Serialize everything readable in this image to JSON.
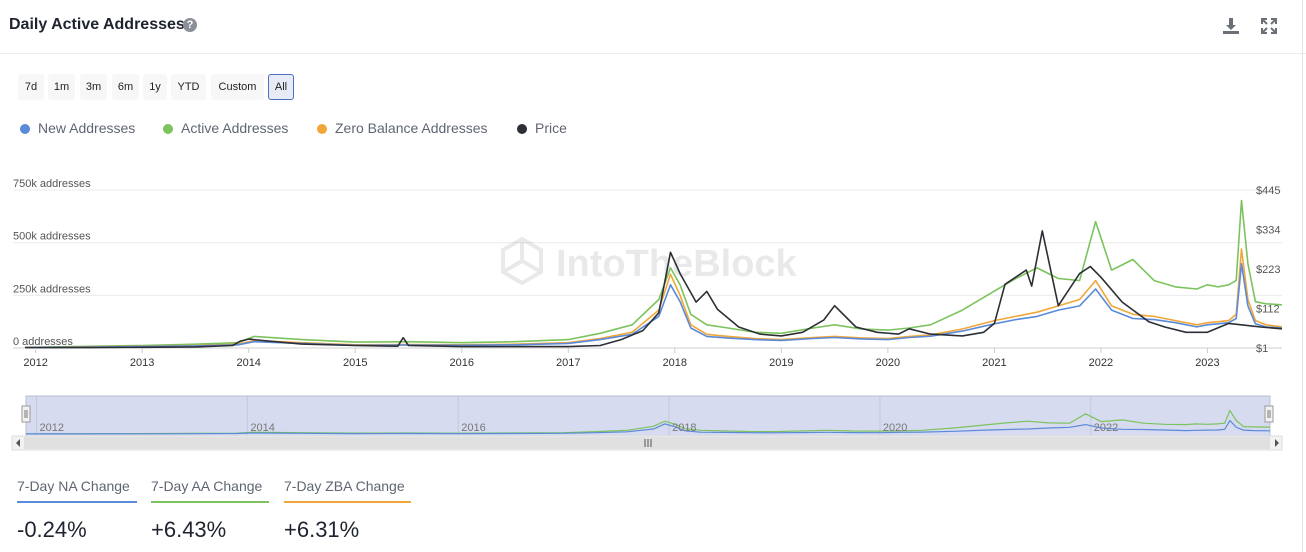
{
  "header": {
    "title": "Daily Active Addresses",
    "help_glyph": "?"
  },
  "ranges": [
    "7d",
    "1m",
    "3m",
    "6m",
    "1y",
    "YTD",
    "Custom",
    "All"
  ],
  "active_range": "All",
  "legend": [
    {
      "name": "New Addresses",
      "color": "#5b8ad8"
    },
    {
      "name": "Active Addresses",
      "color": "#7cc35e"
    },
    {
      "name": "Zero Balance Addresses",
      "color": "#f0a73a"
    },
    {
      "name": "Price",
      "color": "#2d2f36"
    }
  ],
  "watermark": "IntoTheBlock",
  "stats": [
    {
      "label": "7-Day NA Change",
      "value": "-0.24%",
      "color": "#5b8ad8"
    },
    {
      "label": "7-Day AA Change",
      "value": "+6.43%",
      "color": "#7cc35e"
    },
    {
      "label": "7-Day ZBA Change",
      "value": "+6.31%",
      "color": "#f0a73a"
    }
  ],
  "chart_data": {
    "type": "line",
    "title": "Daily Active Addresses",
    "x_ticks": [
      "2012",
      "2013",
      "2014",
      "2015",
      "2016",
      "2017",
      "2018",
      "2019",
      "2020",
      "2021",
      "2022",
      "2023"
    ],
    "y_left_ticks": [
      "750k addresses",
      "500k addresses",
      "250k addresses",
      "0 addresses"
    ],
    "y_left_values": [
      750000,
      500000,
      250000,
      0
    ],
    "y_right_ticks": [
      "$445",
      "$334",
      "$223",
      "$112",
      "$1"
    ],
    "y_right_values": [
      445,
      334,
      223,
      112,
      1
    ],
    "ylim_left": [
      0,
      750000
    ],
    "ylim_right": [
      1,
      445
    ],
    "xlim": [
      2011.9,
      2023.7
    ],
    "navigator_ticks": [
      "2012",
      "2014",
      "2016",
      "2018",
      "2020",
      "2022"
    ],
    "grid": true,
    "series": [
      {
        "name": "Active Addresses",
        "axis": "left",
        "color": "#7cc35e",
        "x": [
          2011.9,
          2012.5,
          2013,
          2013.5,
          2013.9,
          2014.05,
          2014.5,
          2015,
          2015.5,
          2016,
          2016.5,
          2017,
          2017.3,
          2017.6,
          2017.85,
          2017.96,
          2018.05,
          2018.15,
          2018.3,
          2018.5,
          2018.75,
          2019,
          2019.3,
          2019.5,
          2019.75,
          2020,
          2020.2,
          2020.4,
          2020.7,
          2021,
          2021.2,
          2021.4,
          2021.6,
          2021.8,
          2021.95,
          2022.1,
          2022.3,
          2022.5,
          2022.7,
          2022.9,
          2023.0,
          2023.1,
          2023.2,
          2023.27,
          2023.32,
          2023.38,
          2023.45,
          2023.55,
          2023.7
        ],
        "y": [
          3000,
          8000,
          12000,
          18000,
          25000,
          55000,
          40000,
          28000,
          30000,
          25000,
          30000,
          40000,
          70000,
          110000,
          230000,
          380000,
          300000,
          160000,
          110000,
          95000,
          75000,
          70000,
          95000,
          110000,
          90000,
          85000,
          95000,
          110000,
          180000,
          270000,
          330000,
          380000,
          330000,
          320000,
          600000,
          370000,
          420000,
          320000,
          290000,
          280000,
          300000,
          290000,
          300000,
          320000,
          700000,
          400000,
          220000,
          210000,
          205000
        ]
      },
      {
        "name": "Zero Balance Addresses",
        "axis": "left",
        "color": "#f0a73a",
        "x": [
          2011.9,
          2012.5,
          2013,
          2013.5,
          2013.9,
          2014.05,
          2014.5,
          2015,
          2015.5,
          2016,
          2016.5,
          2017,
          2017.3,
          2017.6,
          2017.85,
          2017.96,
          2018.05,
          2018.15,
          2018.3,
          2018.5,
          2018.75,
          2019,
          2019.3,
          2019.5,
          2019.75,
          2020,
          2020.2,
          2020.4,
          2020.7,
          2021,
          2021.2,
          2021.4,
          2021.6,
          2021.8,
          2021.95,
          2022.1,
          2022.3,
          2022.5,
          2022.7,
          2022.9,
          2023.0,
          2023.1,
          2023.2,
          2023.27,
          2023.32,
          2023.38,
          2023.45,
          2023.55,
          2023.7
        ],
        "y": [
          2000,
          5000,
          8000,
          12000,
          18000,
          35000,
          25000,
          15000,
          16000,
          15000,
          18000,
          25000,
          45000,
          75000,
          180000,
          350000,
          250000,
          110000,
          65000,
          55000,
          45000,
          40000,
          50000,
          55000,
          48000,
          45000,
          55000,
          62000,
          90000,
          130000,
          150000,
          170000,
          200000,
          230000,
          320000,
          200000,
          160000,
          150000,
          130000,
          110000,
          120000,
          125000,
          130000,
          160000,
          470000,
          230000,
          130000,
          110000,
          100000
        ]
      },
      {
        "name": "New Addresses",
        "axis": "left",
        "color": "#5b8ad8",
        "x": [
          2011.9,
          2012.5,
          2013,
          2013.5,
          2013.9,
          2014.05,
          2014.5,
          2015,
          2015.5,
          2016,
          2016.5,
          2017,
          2017.3,
          2017.6,
          2017.85,
          2017.96,
          2018.05,
          2018.15,
          2018.3,
          2018.5,
          2018.75,
          2019,
          2019.3,
          2019.5,
          2019.75,
          2020,
          2020.2,
          2020.4,
          2020.7,
          2021,
          2021.2,
          2021.4,
          2021.6,
          2021.8,
          2021.95,
          2022.1,
          2022.3,
          2022.5,
          2022.7,
          2022.9,
          2023.0,
          2023.1,
          2023.2,
          2023.27,
          2023.32,
          2023.38,
          2023.45,
          2023.55,
          2023.7
        ],
        "y": [
          2000,
          4000,
          7000,
          10000,
          15000,
          30000,
          22000,
          13000,
          14000,
          13000,
          15000,
          22000,
          40000,
          65000,
          150000,
          300000,
          220000,
          95000,
          55000,
          47000,
          40000,
          36000,
          45000,
          50000,
          43000,
          40000,
          50000,
          56000,
          80000,
          115000,
          135000,
          150000,
          180000,
          200000,
          280000,
          180000,
          140000,
          135000,
          120000,
          100000,
          110000,
          115000,
          120000,
          140000,
          400000,
          200000,
          115000,
          100000,
          95000
        ]
      },
      {
        "name": "Price",
        "axis": "right",
        "color": "#2d2f36",
        "x": [
          2011.9,
          2012.5,
          2013,
          2013.5,
          2013.85,
          2013.92,
          2014.0,
          2014.2,
          2014.5,
          2015,
          2015.4,
          2015.45,
          2015.5,
          2016,
          2016.5,
          2017,
          2017.3,
          2017.5,
          2017.7,
          2017.85,
          2017.96,
          2018.05,
          2018.2,
          2018.3,
          2018.4,
          2018.6,
          2018.8,
          2019.0,
          2019.2,
          2019.4,
          2019.5,
          2019.7,
          2019.9,
          2020.1,
          2020.2,
          2020.4,
          2020.7,
          2020.9,
          2021.0,
          2021.1,
          2021.3,
          2021.35,
          2021.45,
          2021.6,
          2021.8,
          2021.9,
          2022.0,
          2022.2,
          2022.45,
          2022.6,
          2022.8,
          2023.0,
          2023.2,
          2023.35,
          2023.5,
          2023.7
        ],
        "y": [
          2,
          2,
          3,
          4,
          8,
          20,
          26,
          20,
          12,
          8,
          6,
          30,
          8,
          5,
          5,
          5,
          8,
          25,
          50,
          100,
          270,
          210,
          130,
          160,
          110,
          60,
          40,
          35,
          45,
          80,
          120,
          60,
          45,
          40,
          55,
          40,
          35,
          45,
          70,
          180,
          220,
          175,
          330,
          120,
          210,
          230,
          200,
          130,
          75,
          60,
          45,
          45,
          70,
          65,
          60,
          55
        ]
      }
    ]
  }
}
